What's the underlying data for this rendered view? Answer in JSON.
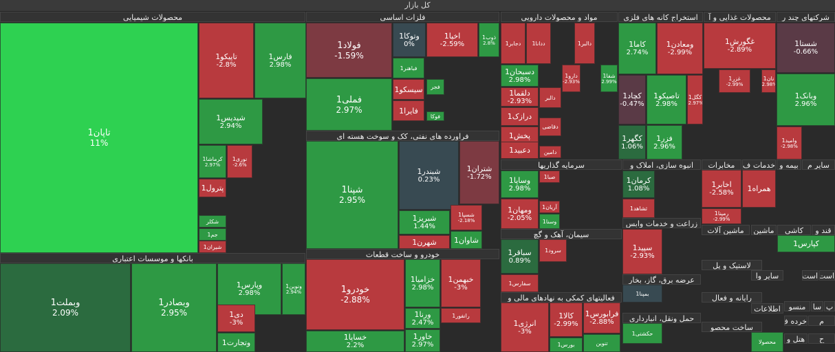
{
  "market_title": "کل بازار",
  "colors": {
    "strong_green": "#2ed151",
    "green": "#2e9944",
    "dark_green": "#2b6b3f",
    "red": "#b83a3e",
    "dark_red": "#7d3a42",
    "neutral": "#384a52",
    "purple": "#5a3a46"
  },
  "chart_data": {
    "type": "treemap",
    "title": "کل بازار",
    "sectors": [
      {
        "name": "محصولات شیمیایی"
      },
      {
        "name": "فلزات اساسی"
      },
      {
        "name": "مواد و محصولات دارویی"
      },
      {
        "name": "استخراج کانه های فلزی"
      },
      {
        "name": "محصولات غذایی و آ"
      },
      {
        "name": "شرکتهای چند ر"
      },
      {
        "name": "فراورده های نفتی، کک و سوخت هسته ای"
      },
      {
        "name": "بانکها و موسسات اعتباری"
      },
      {
        "name": "خودرو و ساخت قطعات"
      },
      {
        "name": "سرمایه گذاریها"
      },
      {
        "name": "انبوه سازی، املاک و"
      },
      {
        "name": "سیمان، آهک و گچ"
      },
      {
        "name": "فعالیتهای کمکی به نهادهای مالی و"
      },
      {
        "name": "زراعت و خدمات وابس"
      },
      {
        "name": "عرضه برق، گاز، بخار"
      },
      {
        "name": "حمل ونقل، انبارداری"
      },
      {
        "name": "ماشین آلات"
      },
      {
        "name": "لاستیک و پل"
      },
      {
        "name": "رایانه و فعال"
      },
      {
        "name": "ساخت محصو"
      },
      {
        "name": "مخابرات"
      },
      {
        "name": "خدمات ف"
      },
      {
        "name": "بیمه و"
      },
      {
        "name": "سایر م"
      },
      {
        "name": "سایر وا"
      },
      {
        "name": "قند و"
      },
      {
        "name": "کاشی"
      },
      {
        "name": "ماشین"
      },
      {
        "name": "اطلاعات"
      },
      {
        "name": "منسو"
      },
      {
        "name": "خرده ف"
      },
      {
        "name": "هتل و"
      },
      {
        "name": "سا"
      },
      {
        "name": "پ"
      },
      {
        "name": "م"
      },
      {
        "name": "ح"
      },
      {
        "name": "است"
      },
      {
        "name": "است"
      }
    ],
    "stocks": [
      {
        "symbol": "تاپان1",
        "change": "11%",
        "color": "#2ed151"
      },
      {
        "symbol": "تاپیکو1",
        "change": "-2.8%",
        "color": "#b83a3e"
      },
      {
        "symbol": "فارس1",
        "change": "2.98%",
        "color": "#2e9944"
      },
      {
        "symbol": "شپدیس1",
        "change": "2.94%",
        "color": "#2e9944"
      },
      {
        "symbol": "کرماشا1",
        "change": "2.97%",
        "color": "#2e9944"
      },
      {
        "symbol": "نوری1",
        "change": "-2.6%",
        "color": "#b83a3e"
      },
      {
        "symbol": "پترول1",
        "change": "",
        "color": "#b83a3e"
      },
      {
        "symbol": "شکلر",
        "change": "",
        "color": "#2e9944"
      },
      {
        "symbol": "جم1",
        "change": "",
        "color": "#2e9944"
      },
      {
        "symbol": "شیران1",
        "change": "",
        "color": "#b83a3e"
      },
      {
        "symbol": "فولاد1",
        "change": "-1.59%",
        "color": "#7d3a42"
      },
      {
        "symbol": "فملی1",
        "change": "2.97%",
        "color": "#2e9944"
      },
      {
        "symbol": "وتوکا1",
        "change": "0%",
        "color": "#384a52"
      },
      {
        "symbol": "اخپا1",
        "change": "-2.59%",
        "color": "#b83a3e"
      },
      {
        "symbol": "ذوب1",
        "change": "2.8%",
        "color": "#2e9944"
      },
      {
        "symbol": "فباهنر1",
        "change": "",
        "color": "#2e9944"
      },
      {
        "symbol": "سیسکو1",
        "change": "",
        "color": "#b83a3e"
      },
      {
        "symbol": "فجر",
        "change": "",
        "color": "#2e9944"
      },
      {
        "symbol": "فایرا1",
        "change": "",
        "color": "#b83a3e"
      },
      {
        "symbol": "فوکا",
        "change": "",
        "color": "#2e9944"
      },
      {
        "symbol": "دجابر1",
        "change": "",
        "color": "#b83a3e"
      },
      {
        "symbol": "ددانا1",
        "change": "",
        "color": "#b83a3e"
      },
      {
        "symbol": "دالبر1",
        "change": "",
        "color": "#b83a3e"
      },
      {
        "symbol": "دسبحان1",
        "change": "2.98%",
        "color": "#2e9944"
      },
      {
        "symbol": "دارو1",
        "change": "-2.93%",
        "color": "#b83a3e"
      },
      {
        "symbol": "شفا1",
        "change": "2.99%",
        "color": "#2e9944"
      },
      {
        "symbol": "دلقما1",
        "change": "-2.93%",
        "color": "#b83a3e"
      },
      {
        "symbol": "دالبر",
        "change": "",
        "color": "#b83a3e"
      },
      {
        "symbol": "درازک1",
        "change": "",
        "color": "#b83a3e"
      },
      {
        "symbol": "دقاضی",
        "change": "",
        "color": "#b83a3e"
      },
      {
        "symbol": "پخش1",
        "change": "",
        "color": "#b83a3e"
      },
      {
        "symbol": "دعبید1",
        "change": "",
        "color": "#b83a3e"
      },
      {
        "symbol": "دامین",
        "change": "",
        "color": "#b83a3e"
      },
      {
        "symbol": "کاما1",
        "change": "2.74%",
        "color": "#2e9944"
      },
      {
        "symbol": "ومعادن1",
        "change": "-2.99%",
        "color": "#b83a3e"
      },
      {
        "symbol": "کچاد1",
        "change": "-0.47%",
        "color": "#5a3a46"
      },
      {
        "symbol": "تاصیکو1",
        "change": "2.98%",
        "color": "#2e9944"
      },
      {
        "symbol": "کگل1",
        "change": "-2.97%",
        "color": "#b83a3e"
      },
      {
        "symbol": "کگهر1",
        "change": "1.06%",
        "color": "#2b6b3f"
      },
      {
        "symbol": "فزر1",
        "change": "2.96%",
        "color": "#2e9944"
      },
      {
        "symbol": "غگورش1",
        "change": "-2.89%",
        "color": "#b83a3e"
      },
      {
        "symbol": "غزر1",
        "change": "-2.99%",
        "color": "#b83a3e"
      },
      {
        "symbol": "نان1",
        "change": "-2.98%",
        "color": "#b83a3e"
      },
      {
        "symbol": "شستا1",
        "change": "-0.66%",
        "color": "#5a3a46"
      },
      {
        "symbol": "وبانک1",
        "change": "2.96%",
        "color": "#2e9944"
      },
      {
        "symbol": "وامید1",
        "change": "-2.98%",
        "color": "#b83a3e"
      },
      {
        "symbol": "شپنا1",
        "change": "2.95%",
        "color": "#2e9944"
      },
      {
        "symbol": "شبندر1",
        "change": "0.23%",
        "color": "#384a52"
      },
      {
        "symbol": "شتران1",
        "change": "-1.72%",
        "color": "#7d3a42"
      },
      {
        "symbol": "شبریز1",
        "change": "1.44%",
        "color": "#2e9944"
      },
      {
        "symbol": "شسپا1",
        "change": "-2.18%",
        "color": "#b83a3e"
      },
      {
        "symbol": "شهرن1",
        "change": "",
        "color": "#b83a3e"
      },
      {
        "symbol": "شاوان1",
        "change": "",
        "color": "#2e9944"
      },
      {
        "symbol": "وبملت1",
        "change": "2.09%",
        "color": "#2b6b3f"
      },
      {
        "symbol": "وبصادر1",
        "change": "2.95%",
        "color": "#2e9944"
      },
      {
        "symbol": "وپارس1",
        "change": "2.98%",
        "color": "#2e9944"
      },
      {
        "symbol": "ونوین1",
        "change": "2.94%",
        "color": "#2e9944"
      },
      {
        "symbol": "دی1",
        "change": "-3%",
        "color": "#b83a3e"
      },
      {
        "symbol": "وتجارت1",
        "change": "",
        "color": "#2e9944"
      },
      {
        "symbol": "خودرو1",
        "change": "-2.88%",
        "color": "#b83a3e"
      },
      {
        "symbol": "خساپا1",
        "change": "2.2%",
        "color": "#2e9944"
      },
      {
        "symbol": "خزامیا1",
        "change": "2.98%",
        "color": "#2e9944"
      },
      {
        "symbol": "خبهمن1",
        "change": "-3%",
        "color": "#b83a3e"
      },
      {
        "symbol": "رانفور1",
        "change": "",
        "color": "#b83a3e"
      },
      {
        "symbol": "ورنا1",
        "change": "2.47%",
        "color": "#2e9944"
      },
      {
        "symbol": "خاور1",
        "change": "2.97%",
        "color": "#2e9944"
      },
      {
        "symbol": "صبا1",
        "change": "",
        "color": "#b83a3e"
      },
      {
        "symbol": "وساپا1",
        "change": "2.98%",
        "color": "#2e9944"
      },
      {
        "symbol": "آریان1",
        "change": "",
        "color": "#b83a3e"
      },
      {
        "symbol": "ومهان1",
        "change": "-2.05%",
        "color": "#b83a3e"
      },
      {
        "symbol": "وسنا1",
        "change": "",
        "color": "#2e9944"
      },
      {
        "symbol": "کرمان1",
        "change": "1.08%",
        "color": "#2b6b3f"
      },
      {
        "symbol": "ثشاهد1",
        "change": "",
        "color": "#b83a3e"
      },
      {
        "symbol": "سباقر1",
        "change": "0.89%",
        "color": "#2b6b3f"
      },
      {
        "symbol": "سرود1",
        "change": "",
        "color": "#b83a3e"
      },
      {
        "symbol": "سفارس1",
        "change": "",
        "color": "#b83a3e"
      },
      {
        "symbol": "انرژی1",
        "change": "-3%",
        "color": "#b83a3e"
      },
      {
        "symbol": "کالا1",
        "change": "-2.99%",
        "color": "#b83a3e"
      },
      {
        "symbol": "فرابورس1",
        "change": "-2.88%",
        "color": "#b83a3e"
      },
      {
        "symbol": "بورس1",
        "change": "",
        "color": "#2e9944"
      },
      {
        "symbol": "تنوین",
        "change": "",
        "color": "#2e9944"
      },
      {
        "symbol": "سپید1",
        "change": "-2.93%",
        "color": "#b83a3e"
      },
      {
        "symbol": "بمپنا1",
        "change": "",
        "color": "#384a52"
      },
      {
        "symbol": "حکشتی1",
        "change": "",
        "color": "#2e9944"
      },
      {
        "symbol": "اخابر1",
        "change": "-2.58%",
        "color": "#b83a3e"
      },
      {
        "symbol": "همراه1",
        "change": "",
        "color": "#b83a3e"
      },
      {
        "symbol": "رمپنا1",
        "change": "-2.99%",
        "color": "#b83a3e"
      },
      {
        "symbol": "کپارس1",
        "change": "",
        "color": "#2e9944"
      },
      {
        "symbol": "محصولا",
        "change": "",
        "color": "#2e9944"
      }
    ]
  }
}
